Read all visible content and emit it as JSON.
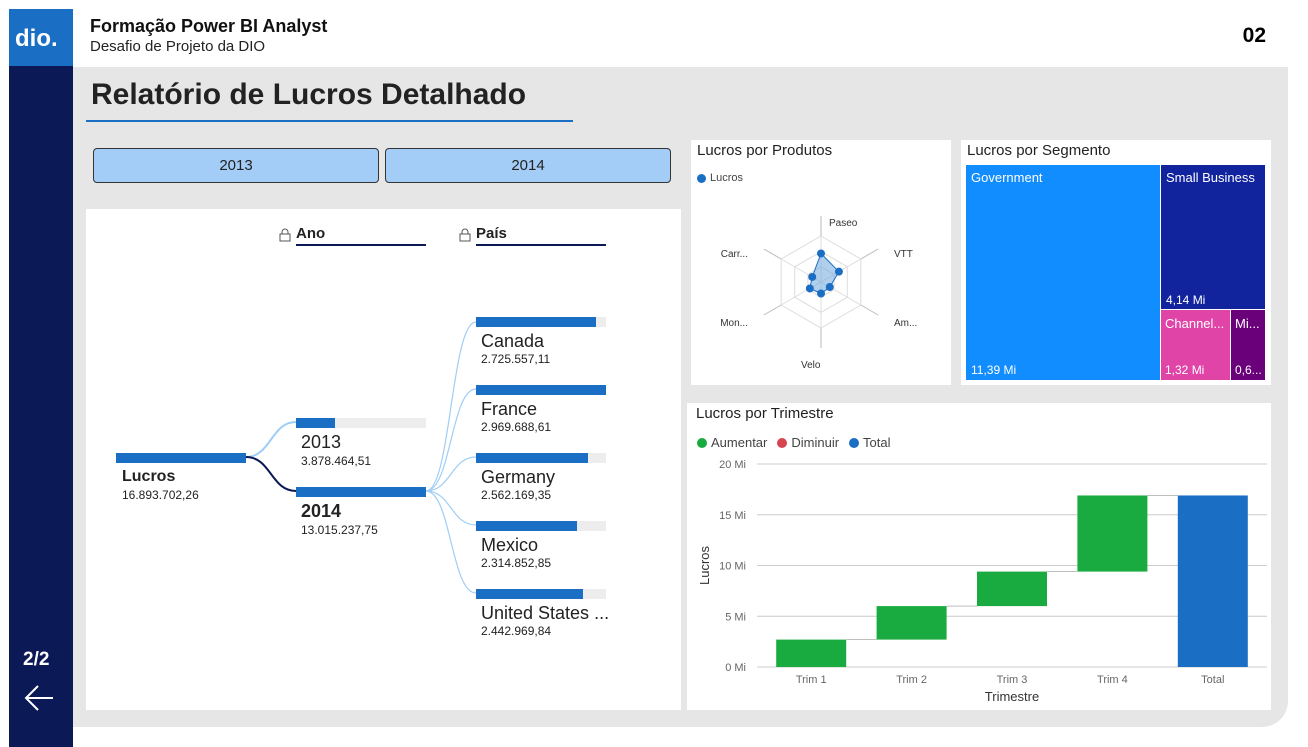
{
  "header": {
    "logo_text": "dio.",
    "title": "Formação Power BI Analyst",
    "subtitle": "Desafio de Projeto da DIO",
    "page_number": "02"
  },
  "sidebar": {
    "page_indicator": "2/2",
    "back_icon": "arrow-left-icon"
  },
  "page_title": "Relatório de Lucros Detalhado",
  "year_slicer": {
    "options": [
      "2013",
      "2014"
    ]
  },
  "decomposition_tree": {
    "level_headers": {
      "ano": "Ano",
      "pais": "País"
    },
    "root": {
      "label": "Lucros",
      "value": "16.893.702,26"
    },
    "years": [
      {
        "label": "2013",
        "value": "3.878.464,51",
        "fill": 0.3
      },
      {
        "label": "2014",
        "value": "13.015.237,75",
        "fill": 1.0
      }
    ],
    "countries": [
      {
        "label": "Canada",
        "value": "2.725.557,11",
        "fill": 0.92
      },
      {
        "label": "France",
        "value": "2.969.688,61",
        "fill": 1.0
      },
      {
        "label": "Germany",
        "value": "2.562.169,35",
        "fill": 0.86
      },
      {
        "label": "Mexico",
        "value": "2.314.852,85",
        "fill": 0.78
      },
      {
        "label": "United States ...",
        "value": "2.442.969,84",
        "fill": 0.82
      }
    ]
  },
  "radar": {
    "title": "Lucros por Produtos",
    "legend": "Lucros",
    "axes": [
      "Paseo",
      "VTT",
      "Am...",
      "Velo",
      "Mon...",
      "Carr..."
    ],
    "values": [
      0.62,
      0.45,
      0.22,
      0.25,
      0.28,
      0.22
    ]
  },
  "treemap": {
    "title": "Lucros por Segmento",
    "segments": [
      {
        "label": "Government",
        "value": "11,39 Mi",
        "color": "#118dff"
      },
      {
        "label": "Small Business",
        "value": "4,14 Mi",
        "color": "#12239e"
      },
      {
        "label": "Channel...",
        "value": "1,32 Mi",
        "color": "#e044a7"
      },
      {
        "label": "Mi...",
        "value": "0,6...",
        "color": "#6b007b"
      }
    ]
  },
  "waterfall": {
    "title": "Lucros por Trimestre",
    "legend": [
      {
        "label": "Aumentar",
        "color": "#1aab40"
      },
      {
        "label": "Diminuir",
        "color": "#d64550"
      },
      {
        "label": "Total",
        "color": "#1a6ec3"
      }
    ],
    "ylabel": "Lucros",
    "xlabel": "Trimestre",
    "yticks": [
      "0 Mi",
      "5 Mi",
      "10 Mi",
      "15 Mi",
      "20 Mi"
    ]
  },
  "chart_data": {
    "type": "bar",
    "subtype": "waterfall",
    "title": "Lucros por Trimestre",
    "xlabel": "Trimestre",
    "ylabel": "Lucros",
    "ylim": [
      0,
      20
    ],
    "unit": "Mi",
    "categories": [
      "Trim 1",
      "Trim 2",
      "Trim 3",
      "Trim 4",
      "Total"
    ],
    "series": [
      {
        "name": "Aumentar",
        "values": [
          2.7,
          3.3,
          3.4,
          7.5,
          null
        ]
      },
      {
        "name": "Total",
        "values": [
          null,
          null,
          null,
          null,
          16.9
        ]
      }
    ],
    "cumulative_end": [
      2.7,
      6.0,
      9.4,
      16.9,
      16.9
    ],
    "grid": true,
    "legend": "top-left"
  }
}
